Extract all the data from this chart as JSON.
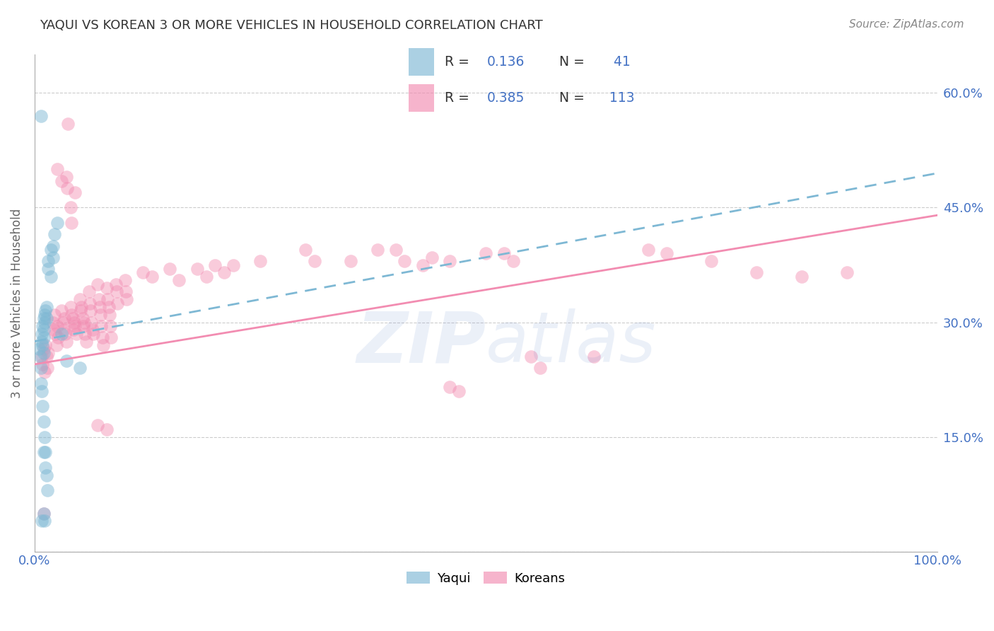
{
  "title": "YAQUI VS KOREAN 3 OR MORE VEHICLES IN HOUSEHOLD CORRELATION CHART",
  "source": "Source: ZipAtlas.com",
  "ylabel": "3 or more Vehicles in Household",
  "watermark": "ZIPAtlas",
  "x_min": 0.0,
  "x_max": 1.0,
  "y_min": 0.0,
  "y_max": 0.65,
  "x_ticks": [
    0.0,
    0.1,
    0.2,
    0.3,
    0.4,
    0.5,
    0.6,
    0.7,
    0.8,
    0.9,
    1.0
  ],
  "x_tick_labels": [
    "0.0%",
    "",
    "",
    "",
    "",
    "",
    "",
    "",
    "",
    "",
    "100.0%"
  ],
  "y_ticks": [
    0.0,
    0.15,
    0.3,
    0.45,
    0.6
  ],
  "y_tick_labels": [
    "",
    "15.0%",
    "30.0%",
    "45.0%",
    "60.0%"
  ],
  "yaqui_color": "#7eb8d4",
  "korean_color": "#f28cb1",
  "grid_color": "#cccccc",
  "axis_color": "#aaaaaa",
  "title_color": "#333333",
  "label_color": "#4472c4",
  "background_color": "#ffffff",
  "yaqui_line_start_y": 0.275,
  "yaqui_line_end_y": 0.495,
  "korean_line_start_y": 0.245,
  "korean_line_end_y": 0.44,
  "yaqui_points": [
    [
      0.005,
      0.265
    ],
    [
      0.006,
      0.255
    ],
    [
      0.007,
      0.24
    ],
    [
      0.007,
      0.22
    ],
    [
      0.008,
      0.285
    ],
    [
      0.008,
      0.275
    ],
    [
      0.009,
      0.295
    ],
    [
      0.009,
      0.27
    ],
    [
      0.01,
      0.305
    ],
    [
      0.01,
      0.29
    ],
    [
      0.01,
      0.28
    ],
    [
      0.01,
      0.26
    ],
    [
      0.011,
      0.31
    ],
    [
      0.011,
      0.3
    ],
    [
      0.012,
      0.315
    ],
    [
      0.013,
      0.32
    ],
    [
      0.013,
      0.305
    ],
    [
      0.015,
      0.38
    ],
    [
      0.015,
      0.37
    ],
    [
      0.018,
      0.395
    ],
    [
      0.018,
      0.36
    ],
    [
      0.02,
      0.4
    ],
    [
      0.02,
      0.385
    ],
    [
      0.022,
      0.415
    ],
    [
      0.025,
      0.43
    ],
    [
      0.008,
      0.21
    ],
    [
      0.009,
      0.19
    ],
    [
      0.01,
      0.17
    ],
    [
      0.011,
      0.15
    ],
    [
      0.012,
      0.13
    ],
    [
      0.013,
      0.1
    ],
    [
      0.014,
      0.08
    ],
    [
      0.01,
      0.05
    ],
    [
      0.011,
      0.04
    ],
    [
      0.03,
      0.285
    ],
    [
      0.035,
      0.25
    ],
    [
      0.05,
      0.24
    ],
    [
      0.007,
      0.57
    ],
    [
      0.01,
      0.13
    ],
    [
      0.012,
      0.11
    ],
    [
      0.008,
      0.04
    ]
  ],
  "korean_points": [
    [
      0.008,
      0.255
    ],
    [
      0.009,
      0.245
    ],
    [
      0.01,
      0.265
    ],
    [
      0.011,
      0.235
    ],
    [
      0.012,
      0.27
    ],
    [
      0.013,
      0.255
    ],
    [
      0.014,
      0.24
    ],
    [
      0.015,
      0.26
    ],
    [
      0.01,
      0.05
    ],
    [
      0.02,
      0.3
    ],
    [
      0.021,
      0.29
    ],
    [
      0.022,
      0.31
    ],
    [
      0.023,
      0.285
    ],
    [
      0.024,
      0.27
    ],
    [
      0.025,
      0.295
    ],
    [
      0.026,
      0.28
    ],
    [
      0.03,
      0.315
    ],
    [
      0.031,
      0.3
    ],
    [
      0.032,
      0.29
    ],
    [
      0.033,
      0.305
    ],
    [
      0.034,
      0.285
    ],
    [
      0.035,
      0.275
    ],
    [
      0.04,
      0.32
    ],
    [
      0.041,
      0.31
    ],
    [
      0.042,
      0.305
    ],
    [
      0.043,
      0.29
    ],
    [
      0.044,
      0.3
    ],
    [
      0.045,
      0.295
    ],
    [
      0.046,
      0.285
    ],
    [
      0.05,
      0.33
    ],
    [
      0.051,
      0.315
    ],
    [
      0.052,
      0.32
    ],
    [
      0.053,
      0.305
    ],
    [
      0.054,
      0.295
    ],
    [
      0.055,
      0.3
    ],
    [
      0.056,
      0.285
    ],
    [
      0.057,
      0.275
    ],
    [
      0.06,
      0.34
    ],
    [
      0.061,
      0.325
    ],
    [
      0.062,
      0.315
    ],
    [
      0.063,
      0.3
    ],
    [
      0.064,
      0.29
    ],
    [
      0.065,
      0.285
    ],
    [
      0.07,
      0.35
    ],
    [
      0.071,
      0.33
    ],
    [
      0.072,
      0.32
    ],
    [
      0.073,
      0.31
    ],
    [
      0.074,
      0.295
    ],
    [
      0.075,
      0.28
    ],
    [
      0.076,
      0.27
    ],
    [
      0.08,
      0.345
    ],
    [
      0.081,
      0.33
    ],
    [
      0.082,
      0.32
    ],
    [
      0.083,
      0.31
    ],
    [
      0.084,
      0.295
    ],
    [
      0.085,
      0.28
    ],
    [
      0.09,
      0.35
    ],
    [
      0.091,
      0.34
    ],
    [
      0.092,
      0.325
    ],
    [
      0.1,
      0.355
    ],
    [
      0.101,
      0.34
    ],
    [
      0.102,
      0.33
    ],
    [
      0.12,
      0.365
    ],
    [
      0.13,
      0.36
    ],
    [
      0.15,
      0.37
    ],
    [
      0.16,
      0.355
    ],
    [
      0.18,
      0.37
    ],
    [
      0.19,
      0.36
    ],
    [
      0.2,
      0.375
    ],
    [
      0.21,
      0.365
    ],
    [
      0.22,
      0.375
    ],
    [
      0.025,
      0.5
    ],
    [
      0.03,
      0.485
    ],
    [
      0.035,
      0.49
    ],
    [
      0.036,
      0.475
    ],
    [
      0.037,
      0.56
    ],
    [
      0.04,
      0.45
    ],
    [
      0.041,
      0.43
    ],
    [
      0.045,
      0.47
    ],
    [
      0.25,
      0.38
    ],
    [
      0.3,
      0.395
    ],
    [
      0.31,
      0.38
    ],
    [
      0.35,
      0.38
    ],
    [
      0.38,
      0.395
    ],
    [
      0.4,
      0.395
    ],
    [
      0.41,
      0.38
    ],
    [
      0.43,
      0.375
    ],
    [
      0.44,
      0.385
    ],
    [
      0.46,
      0.38
    ],
    [
      0.5,
      0.39
    ],
    [
      0.52,
      0.39
    ],
    [
      0.53,
      0.38
    ],
    [
      0.07,
      0.165
    ],
    [
      0.08,
      0.16
    ],
    [
      0.46,
      0.215
    ],
    [
      0.47,
      0.21
    ],
    [
      0.55,
      0.255
    ],
    [
      0.56,
      0.24
    ],
    [
      0.62,
      0.255
    ],
    [
      0.68,
      0.395
    ],
    [
      0.7,
      0.39
    ],
    [
      0.75,
      0.38
    ],
    [
      0.8,
      0.365
    ],
    [
      0.85,
      0.36
    ],
    [
      0.9,
      0.365
    ]
  ]
}
